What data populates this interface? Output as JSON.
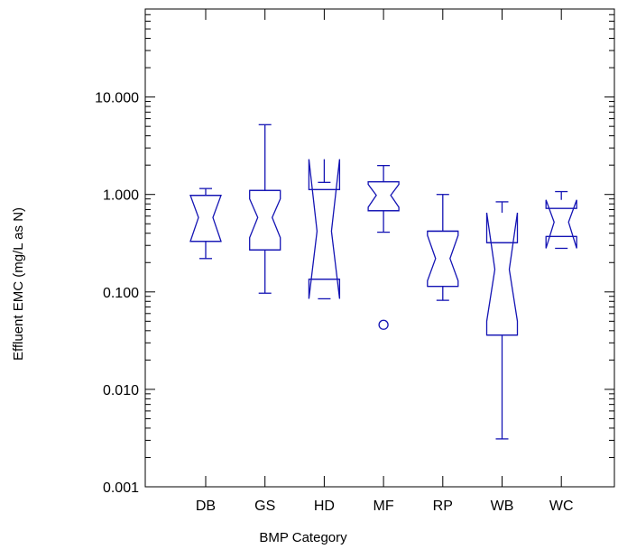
{
  "chart_data": {
    "type": "box",
    "title": "",
    "xlabel": "BMP Category",
    "ylabel": "Effluent  EMC  (mg/L as N)",
    "yscale": "log",
    "ylim": [
      0.001,
      80
    ],
    "y_ticks": [
      0.001,
      0.01,
      0.1,
      1,
      10
    ],
    "y_tick_labels": [
      "0.001",
      "0.010",
      "0.100",
      "1.000",
      "10.000"
    ],
    "grid": false,
    "color": "#1414b4",
    "categories": [
      "DB",
      "GS",
      "HD",
      "MF",
      "RP",
      "WB",
      "WC"
    ],
    "boxes": [
      {
        "category": "DB",
        "whisker_low": 0.22,
        "q1": 0.33,
        "median": 0.58,
        "q3": 0.98,
        "whisker_high": 1.15,
        "notch_low": 0.33,
        "notch_high": 0.98,
        "outliers": []
      },
      {
        "category": "GS",
        "whisker_low": 0.097,
        "q1": 0.27,
        "median": 0.58,
        "q3": 1.1,
        "whisker_high": 5.2,
        "notch_low": 0.36,
        "notch_high": 0.9,
        "outliers": []
      },
      {
        "category": "HD",
        "whisker_low": 0.085,
        "q1": 0.135,
        "median": 0.42,
        "q3": 1.12,
        "whisker_high": 1.33,
        "notch_low": 0.085,
        "notch_high": 2.3,
        "outliers": []
      },
      {
        "category": "MF",
        "whisker_low": 0.41,
        "q1": 0.68,
        "median": 0.98,
        "q3": 1.35,
        "whisker_high": 1.98,
        "notch_low": 0.74,
        "notch_high": 1.27,
        "outliers": [
          0.046
        ]
      },
      {
        "category": "RP",
        "whisker_low": 0.082,
        "q1": 0.114,
        "median": 0.22,
        "q3": 0.42,
        "whisker_high": 1.0,
        "notch_low": 0.13,
        "notch_high": 0.38,
        "outliers": []
      },
      {
        "category": "WB",
        "whisker_low": 0.0031,
        "q1": 0.036,
        "median": 0.17,
        "q3": 0.32,
        "whisker_high": 0.84,
        "notch_low": 0.05,
        "notch_high": 0.65,
        "outliers": []
      },
      {
        "category": "WC",
        "whisker_low": 0.28,
        "q1": 0.37,
        "median": 0.52,
        "q3": 0.72,
        "whisker_high": 1.07,
        "notch_low": 0.28,
        "notch_high": 0.88,
        "outliers": []
      }
    ]
  }
}
